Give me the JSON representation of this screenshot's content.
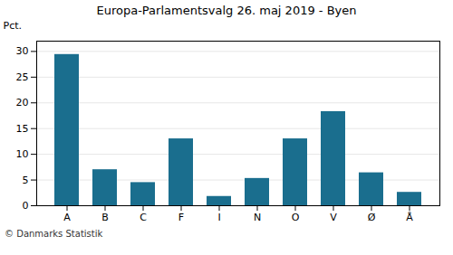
{
  "chart_data": {
    "type": "bar",
    "title": "Europa-Parlamentsvalg 26. maj 2019 - Byen",
    "ylabel": "Pct.",
    "caption": "© Danmarks Statistik",
    "categories": [
      "A",
      "B",
      "C",
      "F",
      "I",
      "N",
      "O",
      "V",
      "Ø",
      "Å"
    ],
    "values": [
      29.4,
      7.0,
      4.5,
      13.0,
      1.8,
      5.3,
      13.0,
      18.3,
      6.4,
      2.6
    ],
    "color": "#1a6e8e",
    "ylim": [
      0,
      32
    ],
    "yticks": [
      0,
      5,
      10,
      15,
      20,
      25,
      30
    ],
    "grid": true
  }
}
